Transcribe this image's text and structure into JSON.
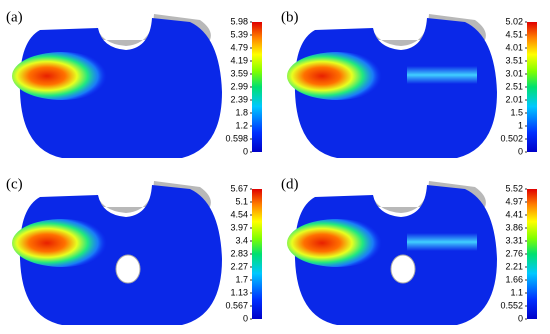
{
  "panels": [
    {
      "label": "(a)",
      "ticks": [
        "5.98",
        "5.39",
        "4.79",
        "4.19",
        "3.59",
        "2.99",
        "2.39",
        "1.8",
        "1.2",
        "0.598",
        "0"
      ]
    },
    {
      "label": "(b)",
      "ticks": [
        "5.02",
        "4.51",
        "4.01",
        "3.51",
        "3.01",
        "2.51",
        "2.01",
        "1.5",
        "1",
        "0.502",
        "0"
      ]
    },
    {
      "label": "(c)",
      "ticks": [
        "5.67",
        "5.1",
        "4.54",
        "3.97",
        "3.4",
        "2.83",
        "2.27",
        "1.7",
        "1.13",
        "0.567",
        "0"
      ]
    },
    {
      "label": "(d)",
      "ticks": [
        "5.52",
        "4.97",
        "4.41",
        "3.86",
        "3.31",
        "2.76",
        "2.21",
        "1.66",
        "1.1",
        "0.552",
        "0"
      ]
    }
  ]
}
